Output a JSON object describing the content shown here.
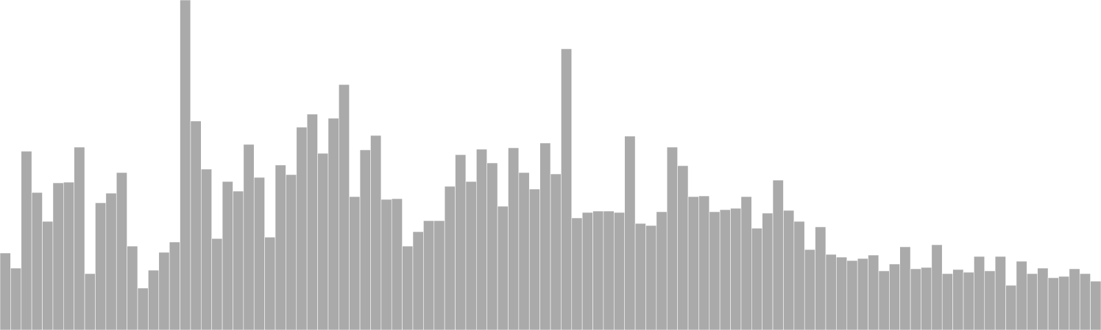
{
  "chart_data": {
    "type": "bar",
    "bar_color": "#aaaaaa",
    "background": "#ffffff",
    "grid": false,
    "legend": "none",
    "title": "",
    "xlabel": "",
    "ylabel": "",
    "ylim": [
      0,
      480
    ],
    "values": [
      112,
      90,
      260,
      200,
      158,
      214,
      215,
      266,
      82,
      185,
      199,
      229,
      122,
      61,
      87,
      113,
      128,
      480,
      304,
      234,
      133,
      216,
      202,
      270,
      222,
      135,
      240,
      226,
      295,
      314,
      257,
      308,
      357,
      194,
      262,
      283,
      190,
      191,
      122,
      143,
      159,
      159,
      209,
      255,
      216,
      263,
      243,
      180,
      265,
      229,
      205,
      272,
      227,
      409,
      163,
      171,
      173,
      173,
      171,
      282,
      155,
      152,
      172,
      266,
      239,
      194,
      195,
      172,
      175,
      177,
      194,
      148,
      170,
      218,
      174,
      158,
      117,
      150,
      110,
      106,
      101,
      104,
      109,
      86,
      96,
      121,
      89,
      91,
      124,
      82,
      88,
      84,
      107,
      86,
      107,
      65,
      100,
      82,
      90,
      76,
      78,
      89,
      82,
      71
    ]
  }
}
